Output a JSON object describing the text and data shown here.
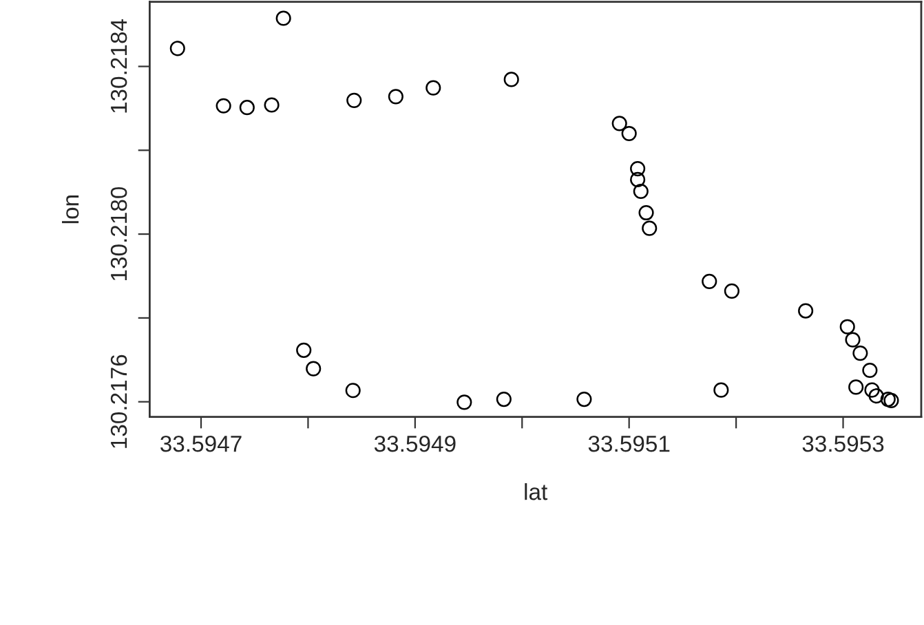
{
  "chart_data": {
    "type": "scatter",
    "xlabel": "lat",
    "ylabel": "lon",
    "marker": "circle",
    "grid": false,
    "xlim": [
      33.594652,
      33.595373
    ],
    "ylim": [
      130.217564,
      130.218554
    ],
    "xticks": [
      33.5947,
      {
        "value": 33.5948,
        "label": null
      },
      33.5949,
      {
        "value": 33.595,
        "label": null
      },
      33.5951,
      {
        "value": 33.5952,
        "label": null
      },
      33.5953
    ],
    "yticks": [
      130.2176,
      {
        "value": 130.2178,
        "label": null
      },
      {
        "value": 130.218,
        "label": "130.2180"
      },
      {
        "value": 130.2182,
        "label": null
      },
      130.2184
    ],
    "x": [
      33.594678,
      33.594721,
      33.594743,
      33.594766,
      33.594777,
      33.594796,
      33.594805,
      33.594843,
      33.594842,
      33.594882,
      33.594917,
      33.594946,
      33.594983,
      33.59499,
      33.595058,
      33.595091,
      33.5951,
      33.595108,
      33.595108,
      33.595111,
      33.595116,
      33.595119,
      33.595175,
      33.595196,
      33.595186,
      33.595265,
      33.595304,
      33.595309,
      33.595316,
      33.595325,
      33.595312,
      33.595327,
      33.595331,
      33.595342,
      33.595345
    ],
    "series": [
      {
        "color": "#000000",
        "values": [
          130.218443,
          130.218306,
          130.218302,
          130.218308,
          130.218515,
          130.217723,
          130.217679,
          130.218319,
          130.217627,
          130.218328,
          130.218349,
          130.217599,
          130.217606,
          130.218369,
          130.217606,
          130.218264,
          130.21824,
          130.218156,
          130.21813,
          130.218102,
          130.218051,
          130.218014,
          130.217887,
          130.217864,
          130.217628,
          130.217817,
          130.217779,
          130.217748,
          130.217716,
          130.217675,
          130.217635,
          130.217628,
          130.217614,
          130.217606,
          130.217603
        ]
      }
    ]
  }
}
